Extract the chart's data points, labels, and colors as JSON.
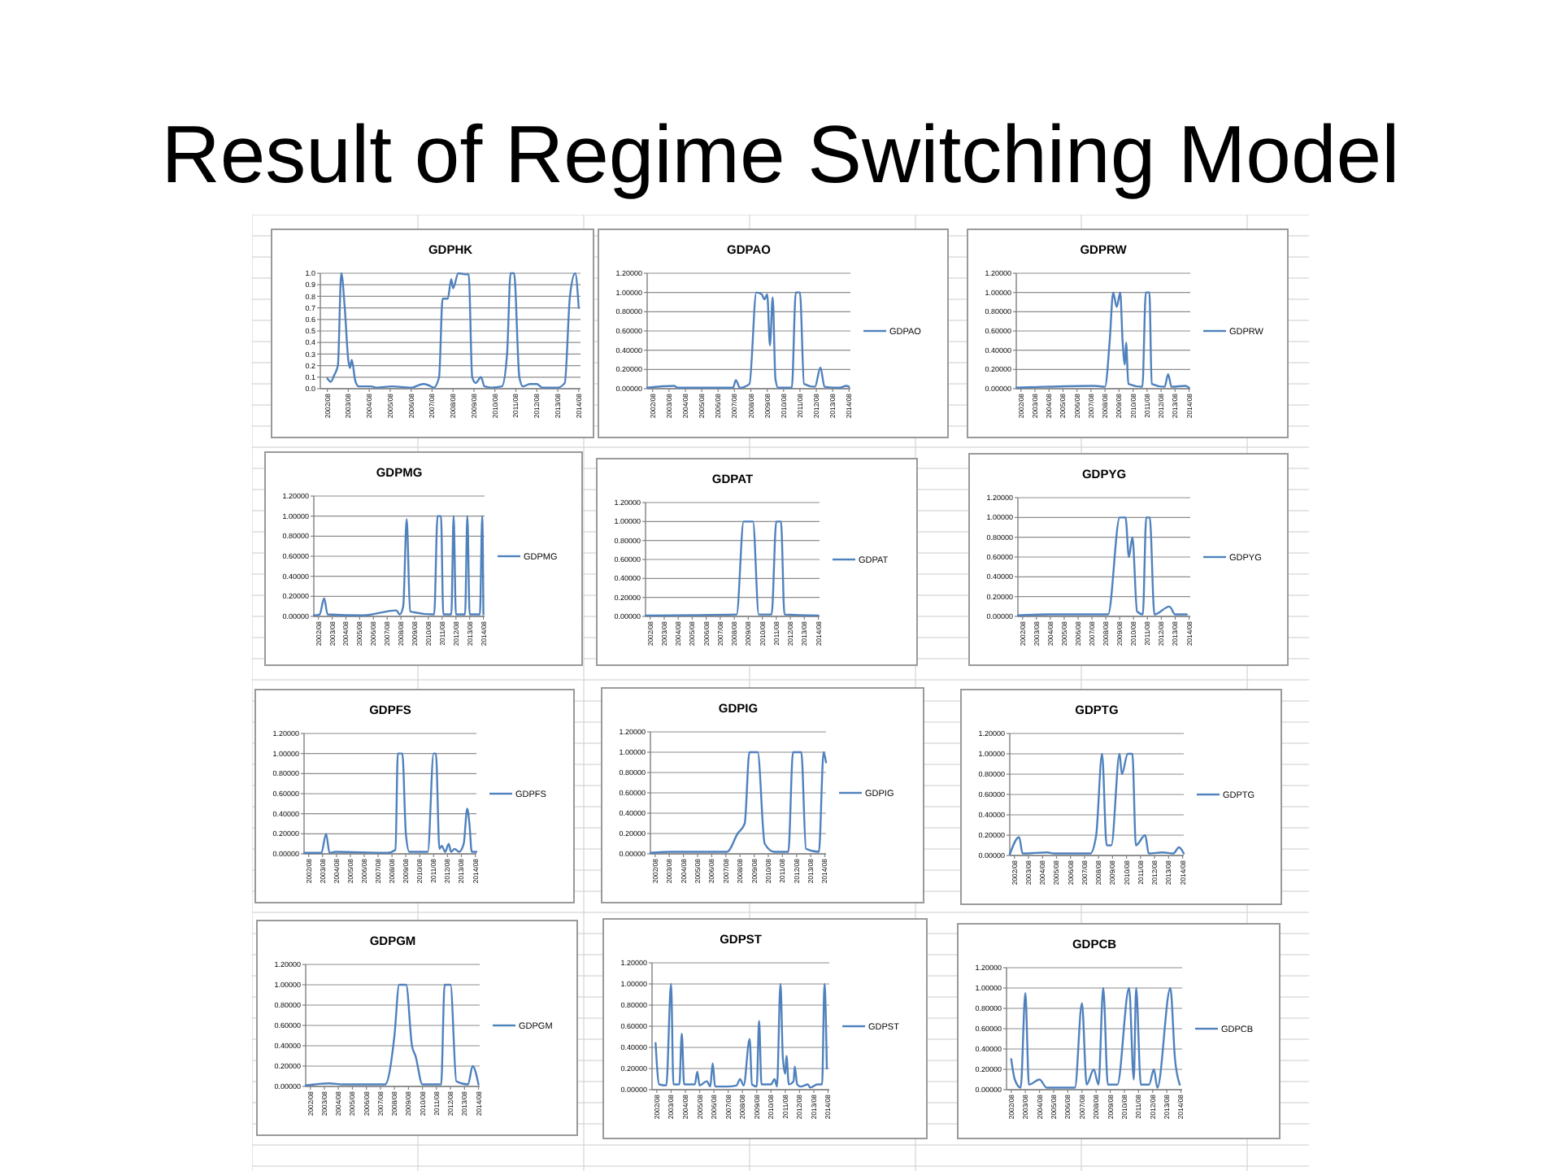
{
  "chart_data": [
    {
      "type": "other",
      "title": "Result of Regime Switching Model"
    },
    {
      "type": "line",
      "title": "GDPHK",
      "xlim": [
        "2002-04",
        "2014-09"
      ],
      "xticks": [
        {
          "value": "2002-08",
          "label": "2002/08"
        },
        {
          "value": "2003-08",
          "label": "2003/08"
        },
        {
          "value": "2004-08",
          "label": "2004/08"
        },
        {
          "value": "2005-08",
          "label": "2005/08"
        },
        {
          "value": "2006-08",
          "label": "2006/08"
        },
        {
          "value": "2007-08",
          "label": "2007/08"
        },
        {
          "value": "2008-08",
          "label": "2008/08"
        },
        {
          "value": "2009-08",
          "label": "2009/08"
        },
        {
          "value": "2010-08",
          "label": "2010/08"
        },
        {
          "value": "2011-08",
          "label": "2011/08"
        },
        {
          "value": "2012-08",
          "label": "2012/08"
        },
        {
          "value": "2013-08",
          "label": "2013/08"
        },
        {
          "value": "2014-08",
          "label": "2014/08"
        }
      ],
      "ylim": [
        0,
        1
      ],
      "yticks": [
        {
          "value": 0,
          "label": "0.0"
        },
        {
          "value": 0.1,
          "label": "0.1"
        },
        {
          "value": 0.2,
          "label": "0.2"
        },
        {
          "value": 0.3,
          "label": "0.3"
        },
        {
          "value": 0.4,
          "label": "0.4"
        },
        {
          "value": 0.5,
          "label": "0.5"
        },
        {
          "value": 0.6,
          "label": "0.6"
        },
        {
          "value": 0.7,
          "label": "0.7"
        },
        {
          "value": 0.8,
          "label": "0.8"
        },
        {
          "value": 0.9,
          "label": "0.9"
        },
        {
          "value": 1,
          "label": "1.0"
        }
      ],
      "grid": "y",
      "legend": false,
      "series": [
        {
          "color": "#4f81bd",
          "x": [
            "2002-08",
            "2002-10",
            "2002-12",
            "2003-02",
            "2003-04",
            "2003-06",
            "2003-08",
            "2003-09",
            "2003-10",
            "2003-12",
            "2004-02",
            "2004-09",
            "2004-12",
            "2005-09",
            "2006-08",
            "2007-03",
            "2007-06",
            "2007-09",
            "2007-12",
            "2008-02",
            "2008-05",
            "2008-07",
            "2008-08",
            "2008-11",
            "2009-03",
            "2009-05",
            "2009-07",
            "2009-09",
            "2009-12",
            "2010-02",
            "2010-06",
            "2010-12",
            "2011-03",
            "2011-05",
            "2011-07",
            "2011-10",
            "2011-12",
            "2012-04",
            "2012-08",
            "2012-11",
            "2013-08",
            "2013-12",
            "2014-03",
            "2014-06",
            "2014-08"
          ],
          "values": [
            0.09,
            0.06,
            0.12,
            0.2,
            1.0,
            0.7,
            0.25,
            0.18,
            0.25,
            0.07,
            0.02,
            0.02,
            0.01,
            0.02,
            0.01,
            0.04,
            0.03,
            0.01,
            0.1,
            0.78,
            0.78,
            0.95,
            0.87,
            1.0,
            0.99,
            0.99,
            0.1,
            0.05,
            0.1,
            0.02,
            0.01,
            0.02,
            0.3,
            1.0,
            1.0,
            0.1,
            0.02,
            0.04,
            0.04,
            0.01,
            0.01,
            0.05,
            0.8,
            1.0,
            0.7
          ]
        }
      ]
    },
    {
      "type": "line",
      "title": "GDPAO",
      "xlim": [
        "2002-04",
        "2014-09"
      ],
      "xticks": [
        {
          "value": "2002-08",
          "label": "2002/08"
        },
        {
          "value": "2003-08",
          "label": "2003/08"
        },
        {
          "value": "2004-08",
          "label": "2004/08"
        },
        {
          "value": "2005-08",
          "label": "2005/08"
        },
        {
          "value": "2006-08",
          "label": "2006/08"
        },
        {
          "value": "2007-08",
          "label": "2007/08"
        },
        {
          "value": "2008-08",
          "label": "2008/08"
        },
        {
          "value": "2009-08",
          "label": "2009/08"
        },
        {
          "value": "2010-08",
          "label": "2010/08"
        },
        {
          "value": "2011-08",
          "label": "2011/08"
        },
        {
          "value": "2012-08",
          "label": "2012/08"
        },
        {
          "value": "2013-08",
          "label": "2013/08"
        },
        {
          "value": "2014-08",
          "label": "2014/08"
        }
      ],
      "ylim": [
        0,
        1.2
      ],
      "yticks": [
        {
          "value": 0,
          "label": "0.00000"
        },
        {
          "value": 0.2,
          "label": "0.20000"
        },
        {
          "value": 0.4,
          "label": "0.40000"
        },
        {
          "value": 0.6,
          "label": "0.60000"
        },
        {
          "value": 0.8,
          "label": "0.80000"
        },
        {
          "value": 1,
          "label": "1.00000"
        },
        {
          "value": 1.2,
          "label": "1.20000"
        }
      ],
      "grid": "y",
      "legend": "right",
      "series": [
        {
          "name": "GDPAO",
          "color": "#4f81bd",
          "x": [
            "2002-04",
            "2003-12",
            "2004-02",
            "2007-07",
            "2007-09",
            "2007-12",
            "2008-07",
            "2008-12",
            "2009-04",
            "2009-06",
            "2009-08",
            "2009-10",
            "2009-12",
            "2010-02",
            "2010-04",
            "2011-02",
            "2011-05",
            "2011-08",
            "2011-11",
            "2012-07",
            "2012-11",
            "2013-02",
            "2014-01",
            "2014-06",
            "2014-08"
          ],
          "values": [
            0.01,
            0.03,
            0.01,
            0.01,
            0.09,
            0.01,
            0.05,
            1.0,
            0.98,
            0.93,
            0.98,
            0.45,
            0.95,
            0.1,
            0.01,
            0.01,
            1.0,
            1.0,
            0.05,
            0.02,
            0.22,
            0.02,
            0.01,
            0.03,
            0.02
          ]
        }
      ]
    },
    {
      "type": "line",
      "title": "GDPRW",
      "xlim": [
        "2002-04",
        "2014-09"
      ],
      "xticks": [
        {
          "value": "2002-08",
          "label": "2002/08"
        },
        {
          "value": "2003-08",
          "label": "2003/08"
        },
        {
          "value": "2004-08",
          "label": "2004/08"
        },
        {
          "value": "2005-08",
          "label": "2005/08"
        },
        {
          "value": "2006-08",
          "label": "2006/08"
        },
        {
          "value": "2007-08",
          "label": "2007/08"
        },
        {
          "value": "2008-08",
          "label": "2008/08"
        },
        {
          "value": "2009-08",
          "label": "2009/08"
        },
        {
          "value": "2010-08",
          "label": "2010/08"
        },
        {
          "value": "2011-08",
          "label": "2011/08"
        },
        {
          "value": "2012-08",
          "label": "2012/08"
        },
        {
          "value": "2013-08",
          "label": "2013/08"
        },
        {
          "value": "2014-08",
          "label": "2014/08"
        }
      ],
      "ylim": [
        0,
        1.2
      ],
      "yticks": [
        {
          "value": 0,
          "label": "0.00000"
        },
        {
          "value": 0.2,
          "label": "0.20000"
        },
        {
          "value": 0.4,
          "label": "0.40000"
        },
        {
          "value": 0.6,
          "label": "0.60000"
        },
        {
          "value": 0.8,
          "label": "0.80000"
        },
        {
          "value": 1,
          "label": "1.00000"
        },
        {
          "value": 1.2,
          "label": "1.20000"
        }
      ],
      "grid": "y",
      "legend": "right",
      "series": [
        {
          "name": "GDPRW",
          "color": "#4f81bd",
          "x": [
            "2002-04",
            "2004-03",
            "2007-11",
            "2008-08",
            "2008-12",
            "2009-03",
            "2009-06",
            "2009-09",
            "2009-11",
            "2010-01",
            "2010-02",
            "2010-04",
            "2011-04",
            "2011-07",
            "2011-10",
            "2011-12",
            "2012-11",
            "2013-02",
            "2013-05",
            "2014-05",
            "2014-08"
          ],
          "values": [
            0.01,
            0.02,
            0.03,
            0.02,
            0.5,
            1.0,
            0.85,
            1.0,
            0.5,
            0.25,
            0.48,
            0.05,
            0.02,
            1.0,
            1.0,
            0.05,
            0.02,
            0.15,
            0.02,
            0.03,
            0.01
          ]
        }
      ]
    },
    {
      "type": "line",
      "title": "GDPMG",
      "xlim": [
        "2002-04",
        "2014-09"
      ],
      "xticks": [
        {
          "value": "2002-08",
          "label": "2002/08"
        },
        {
          "value": "2003-08",
          "label": "2003/08"
        },
        {
          "value": "2004-08",
          "label": "2004/08"
        },
        {
          "value": "2005-08",
          "label": "2005/08"
        },
        {
          "value": "2006-08",
          "label": "2006/08"
        },
        {
          "value": "2007-08",
          "label": "2007/08"
        },
        {
          "value": "2008-08",
          "label": "2008/08"
        },
        {
          "value": "2009-08",
          "label": "2009/08"
        },
        {
          "value": "2010-08",
          "label": "2010/08"
        },
        {
          "value": "2011-08",
          "label": "2011/08"
        },
        {
          "value": "2012-08",
          "label": "2012/08"
        },
        {
          "value": "2013-08",
          "label": "2013/08"
        },
        {
          "value": "2014-08",
          "label": "2014/08"
        }
      ],
      "ylim": [
        0,
        1.2
      ],
      "yticks": [
        {
          "value": 0,
          "label": "0.00000"
        },
        {
          "value": 0.2,
          "label": "0.20000"
        },
        {
          "value": 0.4,
          "label": "0.40000"
        },
        {
          "value": 0.6,
          "label": "0.60000"
        },
        {
          "value": 0.8,
          "label": "0.80000"
        },
        {
          "value": 1,
          "label": "1.00000"
        },
        {
          "value": 1.2,
          "label": "1.20000"
        }
      ],
      "grid": "y",
      "legend": "right",
      "series": [
        {
          "name": "GDPMG",
          "color": "#4f81bd",
          "x": [
            "2002-04",
            "2002-09",
            "2003-01",
            "2003-04",
            "2005-11",
            "2008-04",
            "2008-07",
            "2008-10",
            "2009-01",
            "2009-04",
            "2011-01",
            "2011-04",
            "2011-07",
            "2011-09",
            "2012-04",
            "2012-06",
            "2012-08",
            "2013-04",
            "2013-06",
            "2013-08",
            "2014-05",
            "2014-07",
            "2014-08"
          ],
          "values": [
            0.01,
            0.02,
            0.18,
            0.02,
            0.01,
            0.06,
            0.02,
            0.1,
            0.97,
            0.05,
            0.02,
            1.0,
            1.0,
            0.02,
            0.02,
            1.0,
            0.02,
            0.02,
            1.0,
            0.02,
            0.02,
            1.0,
            0.02
          ]
        }
      ]
    },
    {
      "type": "line",
      "title": "GDPAT",
      "xlim": [
        "2002-04",
        "2014-09"
      ],
      "xticks": [
        {
          "value": "2002-08",
          "label": "2002/08"
        },
        {
          "value": "2003-08",
          "label": "2003/08"
        },
        {
          "value": "2004-08",
          "label": "2004/08"
        },
        {
          "value": "2005-08",
          "label": "2005/08"
        },
        {
          "value": "2006-08",
          "label": "2006/08"
        },
        {
          "value": "2007-08",
          "label": "2007/08"
        },
        {
          "value": "2008-08",
          "label": "2008/08"
        },
        {
          "value": "2009-08",
          "label": "2009/08"
        },
        {
          "value": "2010-08",
          "label": "2010/08"
        },
        {
          "value": "2011-08",
          "label": "2011/08"
        },
        {
          "value": "2012-08",
          "label": "2012/08"
        },
        {
          "value": "2013-08",
          "label": "2013/08"
        },
        {
          "value": "2014-08",
          "label": "2014/08"
        }
      ],
      "ylim": [
        0,
        1.2
      ],
      "yticks": [
        {
          "value": 0,
          "label": "0.00000"
        },
        {
          "value": 0.2,
          "label": "0.20000"
        },
        {
          "value": 0.4,
          "label": "0.40000"
        },
        {
          "value": 0.6,
          "label": "0.60000"
        },
        {
          "value": 0.8,
          "label": "0.80000"
        },
        {
          "value": 1,
          "label": "1.00000"
        },
        {
          "value": 1.2,
          "label": "1.20000"
        }
      ],
      "grid": "y",
      "legend": "right",
      "series": [
        {
          "name": "GDPAT",
          "color": "#4f81bd",
          "x": [
            "2002-04",
            "2008-10",
            "2009-04",
            "2009-12",
            "2010-05",
            "2011-04",
            "2011-08",
            "2011-12",
            "2012-03",
            "2014-08"
          ],
          "values": [
            0.01,
            0.02,
            1.0,
            1.0,
            0.02,
            0.02,
            1.0,
            1.0,
            0.02,
            0.01
          ]
        }
      ]
    },
    {
      "type": "line",
      "title": "GDPYG",
      "xlim": [
        "2002-04",
        "2014-09"
      ],
      "xticks": [
        {
          "value": "2002-08",
          "label": "2002/08"
        },
        {
          "value": "2003-08",
          "label": "2003/08"
        },
        {
          "value": "2004-08",
          "label": "2004/08"
        },
        {
          "value": "2005-08",
          "label": "2005/08"
        },
        {
          "value": "2006-08",
          "label": "2006/08"
        },
        {
          "value": "2007-08",
          "label": "2007/08"
        },
        {
          "value": "2008-08",
          "label": "2008/08"
        },
        {
          "value": "2009-08",
          "label": "2009/08"
        },
        {
          "value": "2010-08",
          "label": "2010/08"
        },
        {
          "value": "2011-08",
          "label": "2011/08"
        },
        {
          "value": "2012-08",
          "label": "2012/08"
        },
        {
          "value": "2013-08",
          "label": "2013/08"
        },
        {
          "value": "2014-08",
          "label": "2014/08"
        }
      ],
      "ylim": [
        0,
        1.2
      ],
      "yticks": [
        {
          "value": 0,
          "label": "0.00000"
        },
        {
          "value": 0.2,
          "label": "0.20000"
        },
        {
          "value": 0.4,
          "label": "0.40000"
        },
        {
          "value": 0.6,
          "label": "0.60000"
        },
        {
          "value": 0.8,
          "label": "0.80000"
        },
        {
          "value": 1,
          "label": "1.00000"
        },
        {
          "value": 1.2,
          "label": "1.20000"
        }
      ],
      "grid": "y",
      "legend": "right",
      "series": [
        {
          "name": "GDPYG",
          "color": "#4f81bd",
          "x": [
            "2002-04",
            "2004-08",
            "2008-10",
            "2009-08",
            "2010-01",
            "2010-04",
            "2010-07",
            "2010-11",
            "2011-04",
            "2011-07",
            "2011-10",
            "2012-02",
            "2013-03",
            "2013-08",
            "2014-06"
          ],
          "values": [
            0.01,
            0.02,
            0.02,
            1.0,
            1.0,
            0.6,
            0.8,
            0.05,
            0.02,
            1.0,
            1.0,
            0.02,
            0.1,
            0.02,
            0.02
          ]
        }
      ]
    },
    {
      "type": "line",
      "title": "GDPFS",
      "xlim": [
        "2002-04",
        "2014-09"
      ],
      "xticks": [
        {
          "value": "2002-08",
          "label": "2002/08"
        },
        {
          "value": "2003-08",
          "label": "2003/08"
        },
        {
          "value": "2004-08",
          "label": "2004/08"
        },
        {
          "value": "2005-08",
          "label": "2005/08"
        },
        {
          "value": "2006-08",
          "label": "2006/08"
        },
        {
          "value": "2007-08",
          "label": "2007/08"
        },
        {
          "value": "2008-08",
          "label": "2008/08"
        },
        {
          "value": "2009-08",
          "label": "2009/08"
        },
        {
          "value": "2010-08",
          "label": "2010/08"
        },
        {
          "value": "2011-08",
          "label": "2011/08"
        },
        {
          "value": "2012-08",
          "label": "2012/08"
        },
        {
          "value": "2013-08",
          "label": "2013/08"
        },
        {
          "value": "2014-08",
          "label": "2014/08"
        }
      ],
      "ylim": [
        0,
        1.2
      ],
      "yticks": [
        {
          "value": 0,
          "label": "0.00000"
        },
        {
          "value": 0.2,
          "label": "0.20000"
        },
        {
          "value": 0.4,
          "label": "0.40000"
        },
        {
          "value": 0.6,
          "label": "0.60000"
        },
        {
          "value": 0.8,
          "label": "0.80000"
        },
        {
          "value": 1,
          "label": "1.00000"
        },
        {
          "value": 1.2,
          "label": "1.20000"
        }
      ],
      "grid": "y",
      "legend": "right",
      "series": [
        {
          "name": "GDPFS",
          "color": "#4f81bd",
          "x": [
            "2002-04",
            "2003-07",
            "2003-11",
            "2004-02",
            "2004-07",
            "2008-04",
            "2008-11",
            "2009-01",
            "2009-05",
            "2009-08",
            "2009-11",
            "2011-03",
            "2011-08",
            "2011-10",
            "2012-01",
            "2012-03",
            "2012-06",
            "2012-09",
            "2012-11",
            "2013-02",
            "2013-06",
            "2013-10",
            "2014-01",
            "2014-03",
            "2014-05",
            "2014-09"
          ],
          "values": [
            0.01,
            0.01,
            0.2,
            0.01,
            0.02,
            0.01,
            0.04,
            1.0,
            1.0,
            0.2,
            0.02,
            0.02,
            1.0,
            1.0,
            0.05,
            0.08,
            0.02,
            0.1,
            0.02,
            0.05,
            0.02,
            0.1,
            0.45,
            0.3,
            0.02,
            0.02
          ]
        }
      ]
    },
    {
      "type": "line",
      "title": "GDPIG",
      "xlim": [
        "2002-04",
        "2014-09"
      ],
      "xticks": [
        {
          "value": "2002-08",
          "label": "2002/08"
        },
        {
          "value": "2003-08",
          "label": "2003/08"
        },
        {
          "value": "2004-08",
          "label": "2004/08"
        },
        {
          "value": "2005-08",
          "label": "2005/08"
        },
        {
          "value": "2006-08",
          "label": "2006/08"
        },
        {
          "value": "2007-08",
          "label": "2007/08"
        },
        {
          "value": "2008-08",
          "label": "2008/08"
        },
        {
          "value": "2009-08",
          "label": "2009/08"
        },
        {
          "value": "2010-08",
          "label": "2010/08"
        },
        {
          "value": "2011-08",
          "label": "2011/08"
        },
        {
          "value": "2012-08",
          "label": "2012/08"
        },
        {
          "value": "2013-08",
          "label": "2013/08"
        },
        {
          "value": "2014-08",
          "label": "2014/08"
        }
      ],
      "ylim": [
        0,
        1.2
      ],
      "yticks": [
        {
          "value": 0,
          "label": "0.00000"
        },
        {
          "value": 0.2,
          "label": "0.20000"
        },
        {
          "value": 0.4,
          "label": "0.40000"
        },
        {
          "value": 0.6,
          "label": "0.60000"
        },
        {
          "value": 0.8,
          "label": "0.80000"
        },
        {
          "value": 1,
          "label": "1.00000"
        },
        {
          "value": 1.2,
          "label": "1.20000"
        }
      ],
      "grid": "y",
      "legend": "right",
      "series": [
        {
          "name": "GDPIG",
          "color": "#4f81bd",
          "x": [
            "2002-04",
            "2003-10",
            "2007-09",
            "2008-06",
            "2008-12",
            "2009-04",
            "2009-11",
            "2010-05",
            "2011-01",
            "2012-01",
            "2012-05",
            "2012-12",
            "2013-04",
            "2014-03",
            "2014-07",
            "2014-09"
          ],
          "values": [
            0.01,
            0.02,
            0.02,
            0.2,
            0.3,
            1.0,
            1.0,
            0.1,
            0.02,
            0.02,
            1.0,
            1.0,
            0.05,
            0.02,
            1.0,
            0.9
          ]
        }
      ]
    },
    {
      "type": "line",
      "title": "GDPTG",
      "xlim": [
        "2002-04",
        "2014-09"
      ],
      "xticks": [
        {
          "value": "2002-08",
          "label": "2002/08"
        },
        {
          "value": "2003-08",
          "label": "2003/08"
        },
        {
          "value": "2004-08",
          "label": "2004/08"
        },
        {
          "value": "2005-08",
          "label": "2005/08"
        },
        {
          "value": "2006-08",
          "label": "2006/08"
        },
        {
          "value": "2007-08",
          "label": "2007/08"
        },
        {
          "value": "2008-08",
          "label": "2008/08"
        },
        {
          "value": "2009-08",
          "label": "2009/08"
        },
        {
          "value": "2010-08",
          "label": "2010/08"
        },
        {
          "value": "2011-08",
          "label": "2011/08"
        },
        {
          "value": "2012-08",
          "label": "2012/08"
        },
        {
          "value": "2013-08",
          "label": "2013/08"
        },
        {
          "value": "2014-08",
          "label": "2014/08"
        }
      ],
      "ylim": [
        0,
        1.2
      ],
      "yticks": [
        {
          "value": 0,
          "label": "0.00000"
        },
        {
          "value": 0.2,
          "label": "0.20000"
        },
        {
          "value": 0.4,
          "label": "0.40000"
        },
        {
          "value": 0.6,
          "label": "0.60000"
        },
        {
          "value": 0.8,
          "label": "0.80000"
        },
        {
          "value": 1,
          "label": "1.00000"
        },
        {
          "value": 1.2,
          "label": "1.20000"
        }
      ],
      "grid": "y",
      "legend": "right",
      "series": [
        {
          "name": "GDPTG",
          "color": "#4f81bd",
          "x": [
            "2002-04",
            "2002-12",
            "2003-03",
            "2004-12",
            "2005-06",
            "2008-01",
            "2008-06",
            "2008-11",
            "2009-03",
            "2009-07",
            "2010-02",
            "2010-04",
            "2010-09",
            "2011-01",
            "2011-04",
            "2011-12",
            "2012-03",
            "2013-03",
            "2013-12",
            "2014-05",
            "2014-09"
          ],
          "values": [
            0.01,
            0.18,
            0.02,
            0.03,
            0.02,
            0.02,
            0.2,
            1.0,
            0.1,
            0.1,
            1.0,
            0.8,
            1.0,
            1.0,
            0.1,
            0.2,
            0.02,
            0.03,
            0.02,
            0.08,
            0.02
          ]
        }
      ]
    },
    {
      "type": "line",
      "title": "GDPGM",
      "xlim": [
        "2002-04",
        "2014-09"
      ],
      "xticks": [
        {
          "value": "2002-08",
          "label": "2002/08"
        },
        {
          "value": "2003-08",
          "label": "2003/08"
        },
        {
          "value": "2004-08",
          "label": "2004/08"
        },
        {
          "value": "2005-08",
          "label": "2005/08"
        },
        {
          "value": "2006-08",
          "label": "2006/08"
        },
        {
          "value": "2007-08",
          "label": "2007/08"
        },
        {
          "value": "2008-08",
          "label": "2008/08"
        },
        {
          "value": "2009-08",
          "label": "2009/08"
        },
        {
          "value": "2010-08",
          "label": "2010/08"
        },
        {
          "value": "2011-08",
          "label": "2011/08"
        },
        {
          "value": "2012-08",
          "label": "2012/08"
        },
        {
          "value": "2013-08",
          "label": "2013/08"
        },
        {
          "value": "2014-08",
          "label": "2014/08"
        }
      ],
      "ylim": [
        0,
        1.2
      ],
      "yticks": [
        {
          "value": 0,
          "label": "0.00000"
        },
        {
          "value": 0.2,
          "label": "0.20000"
        },
        {
          "value": 0.4,
          "label": "0.40000"
        },
        {
          "value": 0.6,
          "label": "0.60000"
        },
        {
          "value": 0.8,
          "label": "0.80000"
        },
        {
          "value": 1,
          "label": "1.00000"
        },
        {
          "value": 1.2,
          "label": "1.20000"
        }
      ],
      "grid": "y",
      "legend": "right",
      "series": [
        {
          "name": "GDPGM",
          "color": "#4f81bd",
          "x": [
            "2002-04",
            "2003-12",
            "2004-12",
            "2007-12",
            "2008-08",
            "2008-12",
            "2009-06",
            "2009-11",
            "2010-02",
            "2010-08",
            "2011-12",
            "2012-03",
            "2012-08",
            "2013-01",
            "2013-11",
            "2014-03",
            "2014-08"
          ],
          "values": [
            0.01,
            0.03,
            0.02,
            0.02,
            0.5,
            1.0,
            1.0,
            0.4,
            0.3,
            0.02,
            0.02,
            1.0,
            1.0,
            0.05,
            0.02,
            0.2,
            0.02
          ]
        }
      ]
    },
    {
      "type": "line",
      "title": "GDPST",
      "xlim": [
        "2002-04",
        "2014-09"
      ],
      "xticks": [
        {
          "value": "2002-08",
          "label": "2002/08"
        },
        {
          "value": "2003-08",
          "label": "2003/08"
        },
        {
          "value": "2004-08",
          "label": "2004/08"
        },
        {
          "value": "2005-08",
          "label": "2005/08"
        },
        {
          "value": "2006-08",
          "label": "2006/08"
        },
        {
          "value": "2007-08",
          "label": "2007/08"
        },
        {
          "value": "2008-08",
          "label": "2008/08"
        },
        {
          "value": "2009-08",
          "label": "2009/08"
        },
        {
          "value": "2010-08",
          "label": "2010/08"
        },
        {
          "value": "2011-08",
          "label": "2011/08"
        },
        {
          "value": "2012-08",
          "label": "2012/08"
        },
        {
          "value": "2013-08",
          "label": "2013/08"
        },
        {
          "value": "2014-08",
          "label": "2014/08"
        }
      ],
      "ylim": [
        0,
        1.2
      ],
      "yticks": [
        {
          "value": 0,
          "label": "0.00000"
        },
        {
          "value": 0.2,
          "label": "0.20000"
        },
        {
          "value": 0.4,
          "label": "0.40000"
        },
        {
          "value": 0.6,
          "label": "0.60000"
        },
        {
          "value": 0.8,
          "label": "0.80000"
        },
        {
          "value": 1,
          "label": "1.00000"
        },
        {
          "value": 1.2,
          "label": "1.20000"
        }
      ],
      "grid": "y",
      "legend": "right",
      "series": [
        {
          "name": "GDPST",
          "color": "#4f81bd",
          "x": [
            "2002-07",
            "2002-10",
            "2003-04",
            "2003-08",
            "2003-10",
            "2004-03",
            "2004-05",
            "2004-07",
            "2005-04",
            "2005-06",
            "2005-08",
            "2006-02",
            "2006-05",
            "2006-07",
            "2006-09",
            "2007-07",
            "2008-03",
            "2008-06",
            "2008-09",
            "2009-02",
            "2009-04",
            "2009-08",
            "2009-10",
            "2009-12",
            "2010-08",
            "2010-11",
            "2011-01",
            "2011-04",
            "2011-06",
            "2011-08",
            "2011-09",
            "2011-11",
            "2012-03",
            "2012-04",
            "2012-06",
            "2012-09",
            "2013-03",
            "2013-05",
            "2013-11",
            "2014-03",
            "2014-05",
            "2014-07"
          ],
          "values": [
            0.44,
            0.05,
            0.04,
            1.0,
            0.05,
            0.05,
            0.53,
            0.05,
            0.05,
            0.17,
            0.04,
            0.08,
            0.03,
            0.25,
            0.03,
            0.03,
            0.04,
            0.1,
            0.04,
            0.48,
            0.05,
            0.03,
            0.65,
            0.05,
            0.05,
            0.1,
            0.03,
            1.0,
            0.3,
            0.15,
            0.32,
            0.05,
            0.08,
            0.22,
            0.05,
            0.03,
            0.05,
            0.02,
            0.05,
            0.05,
            1.0,
            0.2
          ]
        }
      ]
    },
    {
      "type": "line",
      "title": "GDPCB",
      "xlim": [
        "2002-04",
        "2014-09"
      ],
      "xticks": [
        {
          "value": "2002-08",
          "label": "2002/08"
        },
        {
          "value": "2003-08",
          "label": "2003/08"
        },
        {
          "value": "2004-08",
          "label": "2004/08"
        },
        {
          "value": "2005-08",
          "label": "2005/08"
        },
        {
          "value": "2006-08",
          "label": "2006/08"
        },
        {
          "value": "2007-08",
          "label": "2007/08"
        },
        {
          "value": "2008-08",
          "label": "2008/08"
        },
        {
          "value": "2009-08",
          "label": "2009/08"
        },
        {
          "value": "2010-08",
          "label": "2010/08"
        },
        {
          "value": "2011-08",
          "label": "2011/08"
        },
        {
          "value": "2012-08",
          "label": "2012/08"
        },
        {
          "value": "2013-08",
          "label": "2013/08"
        },
        {
          "value": "2014-08",
          "label": "2014/08"
        }
      ],
      "ylim": [
        0,
        1.2
      ],
      "yticks": [
        {
          "value": 0,
          "label": "0.00000"
        },
        {
          "value": 0.2,
          "label": "0.20000"
        },
        {
          "value": 0.4,
          "label": "0.40000"
        },
        {
          "value": 0.6,
          "label": "0.60000"
        },
        {
          "value": 0.8,
          "label": "0.80000"
        },
        {
          "value": 1,
          "label": "1.00000"
        },
        {
          "value": 1.2,
          "label": "1.20000"
        }
      ],
      "grid": "y",
      "legend": "right",
      "series": [
        {
          "name": "GDPCB",
          "color": "#4f81bd",
          "x": [
            "2002-08",
            "2002-11",
            "2003-04",
            "2003-08",
            "2003-11",
            "2004-08",
            "2005-02",
            "2007-02",
            "2007-08",
            "2007-12",
            "2008-06",
            "2008-10",
            "2009-02",
            "2009-06",
            "2010-02",
            "2010-12",
            "2011-04",
            "2011-06",
            "2011-10",
            "2012-05",
            "2012-09",
            "2012-12",
            "2013-11",
            "2014-03",
            "2014-07"
          ],
          "values": [
            0.3,
            0.1,
            0.02,
            0.95,
            0.05,
            0.1,
            0.02,
            0.02,
            0.85,
            0.05,
            0.2,
            0.05,
            1.0,
            0.05,
            0.05,
            1.0,
            0.1,
            1.0,
            0.05,
            0.05,
            0.2,
            0.02,
            1.0,
            0.3,
            0.05
          ]
        }
      ]
    }
  ]
}
